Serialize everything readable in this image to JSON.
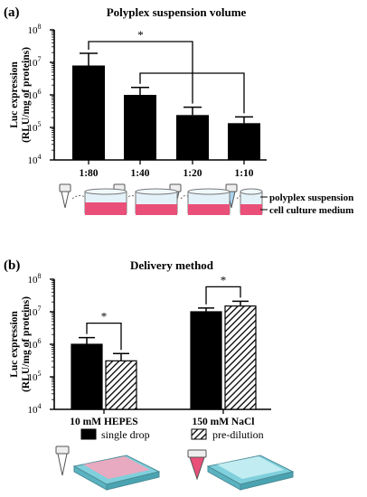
{
  "chart_data": [
    {
      "panel": "(a)",
      "type": "bar",
      "title": "Polyplex suspension volume",
      "ylabel": [
        "Luc expression",
        "(RLU/mg of proteins)"
      ],
      "y_scale": "log",
      "ylim": [
        10000,
        100000000
      ],
      "y_ticks": [
        "10^4",
        "10^5",
        "10^6",
        "10^7",
        "10^8"
      ],
      "categories": [
        "1:80",
        "1:40",
        "1:20",
        "1:10"
      ],
      "values": [
        8000000,
        1000000,
        240000,
        135000
      ],
      "errors_upper": [
        19000000,
        1700000,
        420000,
        210000
      ],
      "bar_color": "#000000",
      "significance": [
        {
          "from": "1:80",
          "to": "1:20",
          "label": "*"
        },
        {
          "from": "1:40",
          "to": "1:10",
          "label": ""
        }
      ],
      "annotations": [
        "polyplex suspension",
        "cell culture medium"
      ]
    },
    {
      "panel": "(b)",
      "type": "bar",
      "title": "Delivery method",
      "ylabel": [
        "Luc expression",
        "(RLU/mg of proteins)"
      ],
      "y_scale": "log",
      "ylim": [
        10000,
        100000000
      ],
      "y_ticks": [
        "10^4",
        "10^5",
        "10^6",
        "10^7",
        "10^8"
      ],
      "categories": [
        "10 mM HEPES",
        "150 mM NaCl"
      ],
      "series": [
        {
          "name": "single drop",
          "values": [
            1000000,
            10000000
          ],
          "errors_upper": [
            1600000,
            13000000
          ],
          "color": "#000000",
          "pattern": "solid"
        },
        {
          "name": "pre-dilution",
          "values": [
            310000,
            15000000
          ],
          "errors_upper": [
            520000,
            21000000
          ],
          "color": "#000000",
          "pattern": "hatched"
        }
      ],
      "significance": [
        {
          "category": "10 mM HEPES",
          "label": "*"
        },
        {
          "category": "150 mM NaCl",
          "label": "*"
        }
      ]
    }
  ],
  "colors": {
    "medium_pink": "#ea4f79",
    "plate_teal": "#7fd0dc",
    "tube_blue": "#a9d3ee"
  }
}
